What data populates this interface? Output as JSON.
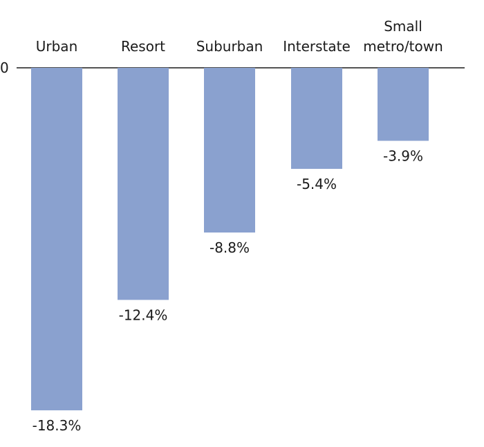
{
  "chart_data": {
    "type": "bar",
    "categories": [
      "Urban",
      "Resort",
      "Suburban",
      "Interstate",
      "Small metro/town"
    ],
    "category_label_lines": [
      [
        "Urban"
      ],
      [
        "Resort"
      ],
      [
        "Suburban"
      ],
      [
        "Interstate"
      ],
      [
        "Small",
        "metro/town"
      ]
    ],
    "values": [
      -18.3,
      -12.4,
      -8.8,
      -5.4,
      -3.9
    ],
    "data_labels": [
      "-18.3%",
      "-12.4%",
      "-8.8%",
      "-5.4%",
      "-3.9%"
    ],
    "zero_tick_label": "0",
    "ylim": [
      -18.3,
      0
    ],
    "grid": false,
    "title": "",
    "xlabel": "",
    "ylabel": "",
    "bar_color": "#8aa1cf",
    "axis_color": "#1a1a1a",
    "text_color": "#1a1a1a"
  }
}
